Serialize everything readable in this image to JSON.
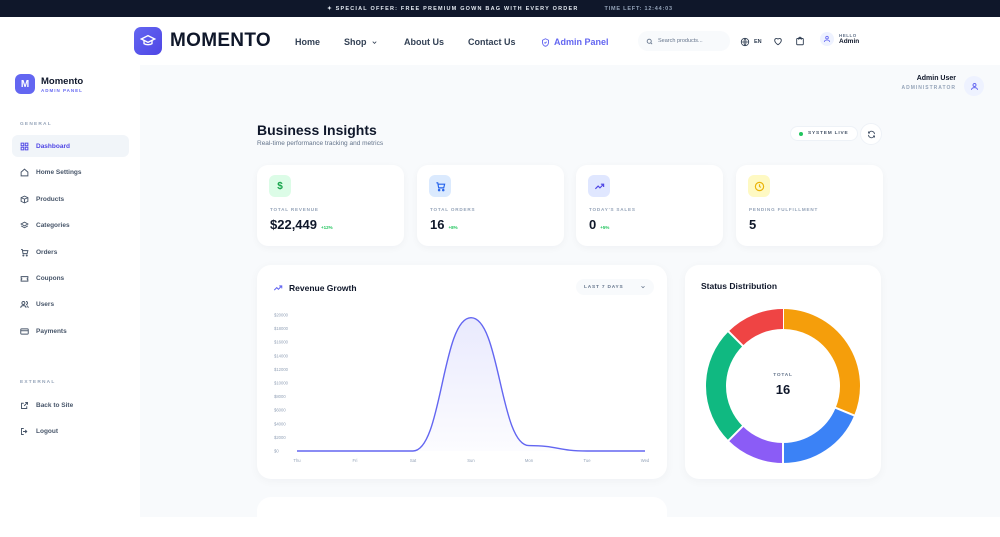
{
  "promo": {
    "offer": "✦ SPECIAL OFFER: FREE PREMIUM GOWN BAG WITH EVERY ORDER",
    "timer": "TIME LEFT: 12:44:03"
  },
  "nav": {
    "brand": "MOMENTO",
    "links": [
      "Home",
      "Shop",
      "About Us",
      "Contact Us"
    ],
    "admin_panel": "Admin Panel",
    "search_placeholder": "Search products...",
    "lang": "EN",
    "user_greeting": "HELLO",
    "user_name": "Admin"
  },
  "sidebar": {
    "logo_letter": "M",
    "title": "Momento",
    "subtitle": "ADMIN PANEL",
    "section_general": "GENERAL",
    "items": [
      "Dashboard",
      "Home Settings",
      "Products",
      "Categories",
      "Orders",
      "Coupons",
      "Users",
      "Payments"
    ],
    "section_external": "EXTERNAL",
    "external": [
      "Back to Site",
      "Logout"
    ]
  },
  "header": {
    "admin_name": "Admin User",
    "admin_role": "ADMINISTRATOR",
    "title": "Business Insights",
    "subtitle": "Real-time performance tracking and metrics",
    "status": "SYSTEM LIVE"
  },
  "stats": [
    {
      "label": "TOTAL REVENUE",
      "value": "$22,449",
      "change": "+12%",
      "icon": "dollar-icon",
      "color": "#16a34a",
      "bg": "#dcfce7"
    },
    {
      "label": "TOTAL ORDERS",
      "value": "16",
      "change": "+8%",
      "icon": "cart-icon",
      "color": "#2563eb",
      "bg": "#dbeafe"
    },
    {
      "label": "TODAY'S SALES",
      "value": "0",
      "change": "+5%",
      "icon": "trend-icon",
      "color": "#4f46e5",
      "bg": "#e0e7ff"
    },
    {
      "label": "PENDING FULFILLMENT",
      "value": "5",
      "change": "",
      "icon": "clock-icon",
      "color": "#eab308",
      "bg": "#fef9c3"
    }
  ],
  "revenue_card": {
    "title": "Revenue Growth",
    "range": "LAST 7 DAYS"
  },
  "status_card": {
    "title": "Status Distribution",
    "total_label": "TOTAL",
    "total_value": "16"
  },
  "chart_data": [
    {
      "type": "area",
      "title": "Revenue Growth",
      "x": [
        "Thu",
        "Fri",
        "Sat",
        "Sun",
        "Mon",
        "Tue",
        "Wed"
      ],
      "y_ticks": [
        "$20000",
        "$18000",
        "$16000",
        "$14000",
        "$12000",
        "$10000",
        "$8000",
        "$6000",
        "$4000",
        "$2000",
        "$0"
      ],
      "series": [
        {
          "values": [
            0,
            0,
            0,
            19600,
            800,
            0,
            0
          ]
        }
      ],
      "ylim": [
        0,
        20000
      ],
      "color": "#6366f1"
    },
    {
      "type": "pie",
      "title": "Status Distribution",
      "slices": [
        {
          "value": 5,
          "color": "#f59e0b"
        },
        {
          "value": 3,
          "color": "#3b82f6"
        },
        {
          "value": 2,
          "color": "#8b5cf6"
        },
        {
          "value": 4,
          "color": "#10b981"
        },
        {
          "value": 2,
          "color": "#ef4444"
        }
      ]
    }
  ]
}
